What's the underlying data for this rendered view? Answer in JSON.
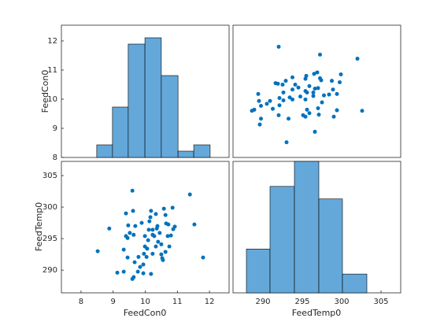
{
  "chart_data": [
    {
      "type": "histogram",
      "color": "#64a8da",
      "bins": [
        8.49,
        8.98,
        9.47,
        9.99,
        10.5,
        11.02,
        11.51,
        12.02
      ],
      "values": [
        2,
        8,
        18,
        19,
        13,
        1,
        2
      ],
      "xlim": [
        7.39,
        12.61
      ],
      "ylim": [
        0,
        21
      ]
    },
    {
      "type": "scatter",
      "color": "#0072bd",
      "x_label": "FeedTemp0",
      "y_label": "FeedCon0",
      "x": [
        293.0,
        296.6,
        289.6,
        289.75,
        302.6,
        302.0,
        297.25,
        292.0,
        299.0,
        299.4,
        297.1,
        295.9,
        295.4,
        295.1,
        295.6,
        297.0,
        297.5,
        293.25,
        292.0,
        291.25,
        290.9,
        292.6,
        293.75,
        292.1,
        294.75,
        296.4,
        297.75,
        298.4,
        299.4,
        295.6,
        295.4,
        293.75,
        297.0,
        295.9,
        292.5,
        291.9,
        299.75,
        297.4,
        295.4,
        293.75,
        295.5,
        299.9,
        296.5,
        296.9,
        292.6,
        293.4,
        289.4,
        290.5,
        291.6,
        294.5,
        298.9,
        296.6,
        292.1,
        297.25,
        288.9,
        288.6,
        296.4,
        294.1,
        292.9,
        289.5,
        289.75,
        298.75,
        295.4
      ],
      "y": [
        8.52,
        8.88,
        9.13,
        9.33,
        9.6,
        11.39,
        11.53,
        11.8,
        9.4,
        9.62,
        9.47,
        9.52,
        9.4,
        9.45,
        9.64,
        9.69,
        9.89,
        9.33,
        9.45,
        9.67,
        9.94,
        9.96,
        9.99,
        9.79,
        10.09,
        10.11,
        10.13,
        10.16,
        10.18,
        10.23,
        10.28,
        10.33,
        10.38,
        10.45,
        10.5,
        10.53,
        10.58,
        10.65,
        10.7,
        10.75,
        10.8,
        10.85,
        10.87,
        10.92,
        10.23,
        10.06,
        10.18,
        9.84,
        10.55,
        10.4,
        10.33,
        10.36,
        10.04,
        10.72,
        9.64,
        9.6,
        10.23,
        10.5,
        10.63,
        9.94,
        9.77,
        10.63,
        9.99
      ],
      "xlim": [
        286.2,
        307.5
      ],
      "ylim": [
        8,
        12.54
      ],
      "xticks": [
        290,
        295,
        300,
        305
      ],
      "yticks": [
        8,
        9,
        10,
        11,
        12
      ]
    },
    {
      "type": "scatter",
      "color": "#0072bd",
      "x_label": "FeedCon0",
      "y_label": "FeedTemp0",
      "x": [
        8.52,
        8.88,
        9.13,
        9.33,
        9.6,
        11.39,
        11.53,
        11.8,
        9.4,
        9.62,
        9.47,
        9.52,
        9.4,
        9.45,
        9.64,
        9.69,
        9.89,
        9.33,
        9.45,
        9.67,
        9.94,
        9.96,
        9.99,
        9.79,
        10.09,
        10.11,
        10.13,
        10.16,
        10.18,
        10.23,
        10.28,
        10.33,
        10.38,
        10.45,
        10.5,
        10.53,
        10.58,
        10.65,
        10.7,
        10.75,
        10.8,
        10.85,
        10.87,
        10.92,
        10.23,
        10.06,
        10.18,
        9.84,
        10.55,
        10.4,
        10.33,
        10.36,
        10.04,
        10.72,
        9.64,
        9.6,
        10.23,
        10.5,
        10.63,
        9.94,
        9.77,
        10.63,
        9.99
      ],
      "y": [
        293.0,
        296.6,
        289.6,
        289.75,
        302.6,
        302.0,
        297.25,
        292.0,
        299.0,
        299.4,
        297.1,
        295.9,
        295.4,
        295.1,
        295.6,
        297.0,
        297.5,
        293.25,
        292.0,
        291.25,
        290.9,
        292.6,
        293.75,
        292.1,
        294.75,
        296.4,
        297.75,
        298.4,
        299.4,
        295.6,
        295.4,
        293.75,
        297.0,
        295.9,
        292.5,
        291.9,
        299.75,
        297.4,
        295.4,
        293.75,
        295.5,
        299.9,
        296.5,
        296.9,
        292.6,
        293.4,
        289.4,
        290.5,
        291.6,
        294.5,
        298.9,
        296.6,
        292.1,
        297.25,
        288.9,
        288.6,
        296.4,
        294.1,
        292.9,
        289.5,
        289.75,
        298.75,
        295.4
      ],
      "xlim": [
        7.39,
        12.61
      ],
      "ylim": [
        286.4,
        307.25
      ],
      "xticks": [
        8,
        9,
        10,
        11,
        12
      ],
      "yticks": [
        290,
        295,
        300,
        305
      ]
    },
    {
      "type": "histogram",
      "color": "#64a8da",
      "bins": [
        287.9,
        290.9,
        294.0,
        297.1,
        300.1,
        303.2
      ],
      "values": [
        7,
        17,
        21,
        15,
        3
      ],
      "xlim": [
        286.2,
        307.5
      ],
      "ylim": [
        0,
        21
      ]
    }
  ]
}
